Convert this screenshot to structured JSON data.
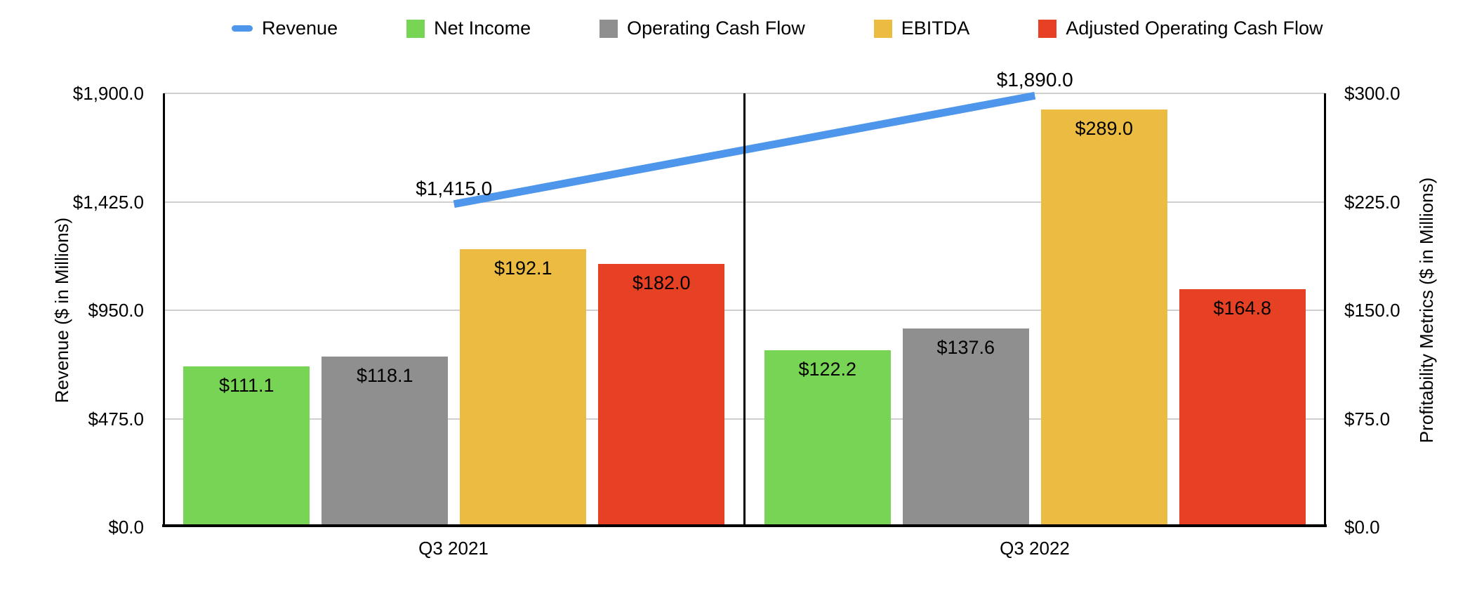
{
  "legend": {
    "items": [
      {
        "label": "Revenue",
        "swatch": "line",
        "color": "#4D96EB"
      },
      {
        "label": "Net Income",
        "swatch": "square",
        "color": "#77D455"
      },
      {
        "label": "Operating Cash Flow",
        "swatch": "square",
        "color": "#8F8F8F"
      },
      {
        "label": "EBITDA",
        "swatch": "square",
        "color": "#ECBB42"
      },
      {
        "label": "Adjusted Operating Cash Flow",
        "swatch": "square",
        "color": "#E74125"
      }
    ]
  },
  "chart_data": {
    "type": "combo (grouped bar + line, dual axis)",
    "categories": [
      "Q3 2021",
      "Q3 2022"
    ],
    "bar_series": [
      {
        "name": "Net Income",
        "color": "#77D455",
        "axis": "right",
        "values": [
          111.1,
          122.2
        ],
        "labels": [
          "$111.1",
          "$122.2"
        ]
      },
      {
        "name": "Operating Cash Flow",
        "color": "#8F8F8F",
        "axis": "right",
        "values": [
          118.1,
          137.6
        ],
        "labels": [
          "$118.1",
          "$137.6"
        ]
      },
      {
        "name": "EBITDA",
        "color": "#ECBB42",
        "axis": "right",
        "values": [
          192.1,
          289.0
        ],
        "labels": [
          "$192.1",
          "$289.0"
        ]
      },
      {
        "name": "Adjusted Operating Cash Flow",
        "color": "#E74125",
        "axis": "right",
        "values": [
          182.0,
          164.8
        ],
        "labels": [
          "$182.0",
          "$164.8"
        ]
      }
    ],
    "line_series": {
      "name": "Revenue",
      "color": "#4D96EB",
      "axis": "left",
      "values": [
        1415.0,
        1890.0
      ],
      "labels": [
        "$1,415.0",
        "$1,890.0"
      ]
    },
    "left_axis": {
      "title": "Revenue ($ in Millions)",
      "min": 0,
      "max": 1900,
      "ticks": [
        "$0.0",
        "$475.0",
        "$950.0",
        "$1,425.0",
        "$1,900.0"
      ]
    },
    "right_axis": {
      "title": "Profitability Metrics ($ in Millions)",
      "min": 0,
      "max": 300,
      "ticks": [
        "$0.0",
        "$75.0",
        "$150.0",
        "$225.0",
        "$300.0"
      ]
    },
    "grid": true,
    "gridline_color": "#CFCFCF",
    "axis_color": "#000000",
    "background": "#FFFFFF",
    "legend_position": "top"
  }
}
